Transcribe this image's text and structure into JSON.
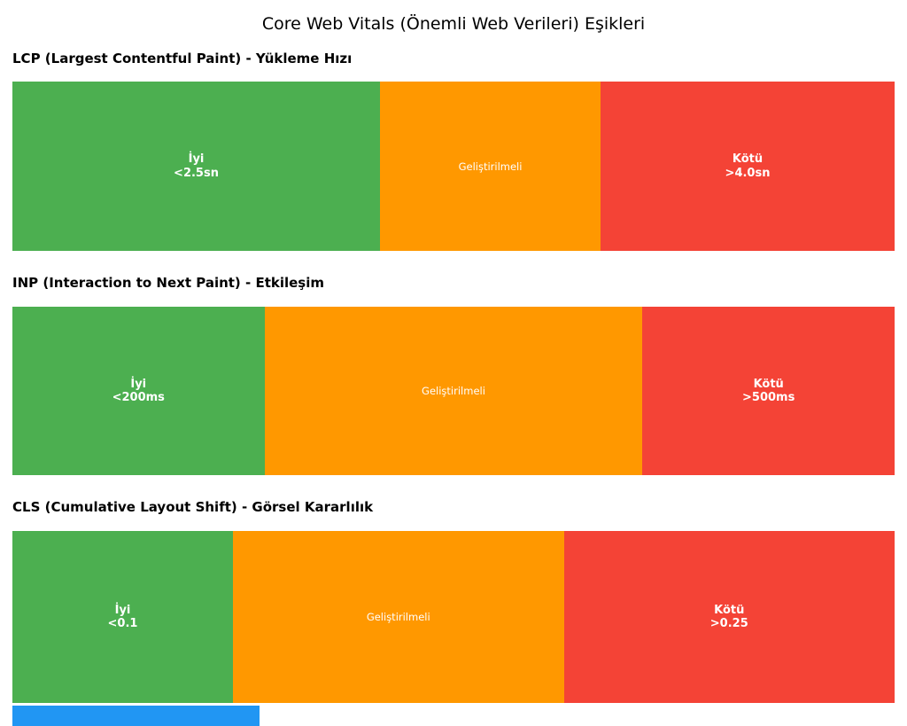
{
  "title": "Core Web Vitals (Önemli Web Verileri) Eşikleri",
  "chart_data": [
    {
      "type": "bar",
      "orientation": "horizontal-stacked",
      "metric": "LCP",
      "heading": "LCP (Largest Contentful Paint) - Yükleme Hızı",
      "axis_range_implied": [
        0,
        6.0
      ],
      "unit": "sn",
      "segments": [
        {
          "name": "İyi",
          "threshold": "<2.5sn",
          "span": [
            0,
            2.5
          ],
          "color": "#4CAF50",
          "width_pct": 41.67
        },
        {
          "name": "Geliştirilmeli",
          "threshold": "",
          "span": [
            2.5,
            4.0
          ],
          "color": "#FF9800",
          "width_pct": 25.0
        },
        {
          "name": "Kötü",
          "threshold": ">4.0sn",
          "span": [
            4.0,
            6.0
          ],
          "color": "#F44336",
          "width_pct": 33.33
        }
      ]
    },
    {
      "type": "bar",
      "orientation": "horizontal-stacked",
      "metric": "INP",
      "heading": "INP (Interaction to Next Paint) - Etkileşim",
      "axis_range_implied": [
        0,
        700
      ],
      "unit": "ms",
      "segments": [
        {
          "name": "İyi",
          "threshold": "<200ms",
          "span": [
            0,
            200
          ],
          "color": "#4CAF50",
          "width_pct": 28.57
        },
        {
          "name": "Geliştirilmeli",
          "threshold": "",
          "span": [
            200,
            500
          ],
          "color": "#FF9800",
          "width_pct": 42.86
        },
        {
          "name": "Kötü",
          "threshold": ">500ms",
          "span": [
            500,
            700
          ],
          "color": "#F44336",
          "width_pct": 28.57
        }
      ]
    },
    {
      "type": "bar",
      "orientation": "horizontal-stacked",
      "metric": "CLS",
      "heading": "CLS (Cumulative Layout Shift) - Görsel Kararlılık",
      "axis_range_implied": [
        0,
        0.4
      ],
      "unit": "",
      "segments": [
        {
          "name": "İyi",
          "threshold": "<0.1",
          "span": [
            0,
            0.1
          ],
          "color": "#4CAF50",
          "width_pct": 25.0
        },
        {
          "name": "Geliştirilmeli",
          "threshold": "",
          "span": [
            0.1,
            0.25
          ],
          "color": "#FF9800",
          "width_pct": 37.5
        },
        {
          "name": "Kötü",
          "threshold": ">0.25",
          "span": [
            0.25,
            0.4
          ],
          "color": "#F44336",
          "width_pct": 37.5
        }
      ]
    }
  ],
  "partial_bar": {
    "color": "#2196F3",
    "width_pct": 27.2
  },
  "colors": {
    "good": "#4CAF50",
    "needs_improvement": "#FF9800",
    "poor": "#F44336",
    "background": "#FFFFFF",
    "text": "#000000",
    "segment_text": "#FFFFFF"
  }
}
